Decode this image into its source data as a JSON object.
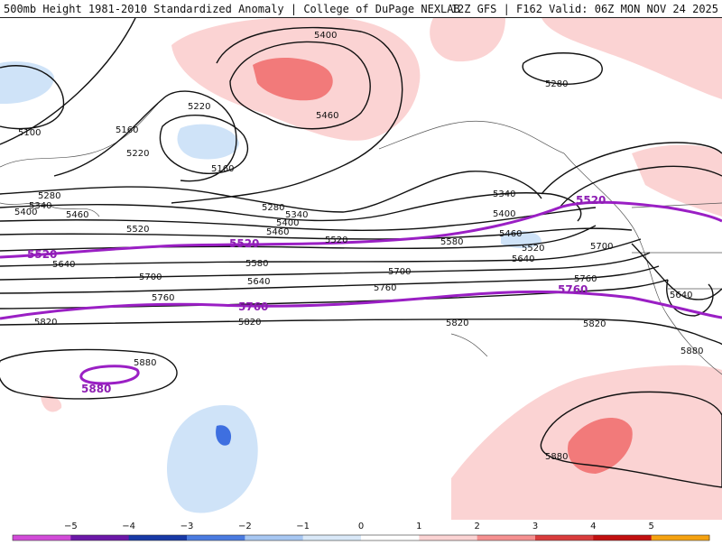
{
  "header": {
    "title": "500mb Height 1981-2010 Standardized Anomaly | College of DuPage NEXLAB",
    "run_info": "12Z GFS | F162 Valid: 06Z MON NOV 24 2025"
  },
  "contours": {
    "c5100": "5100",
    "c5160": "5160",
    "c5220": "5220",
    "c5280": "5280",
    "c5340": "5340",
    "c5400": "5400",
    "c5460": "5460",
    "c5520": "5520",
    "c5580": "5580",
    "c5640": "5640",
    "c5700": "5700",
    "c5760": "5760",
    "c5820": "5820",
    "c5880": "5880"
  },
  "colorbar": {
    "ticks": [
      "−5",
      "−4",
      "−3",
      "−2",
      "−1",
      "0",
      "1",
      "2",
      "3",
      "4",
      "5"
    ],
    "colors": [
      "#d24bd8",
      "#6b17a8",
      "#1739a6",
      "#4a7be0",
      "#a7c7f2",
      "#d9e8f8",
      "#ffffff",
      "#fbd3d3",
      "#f59090",
      "#d93c3c",
      "#c21010",
      "#f5a210"
    ]
  },
  "colors": {
    "pos1": "#fbd3d3",
    "pos2": "#f27a7a",
    "neg1": "#cfe3f8",
    "neg2": "#3e6fe0",
    "highlight_line": "#9a1fc4"
  }
}
